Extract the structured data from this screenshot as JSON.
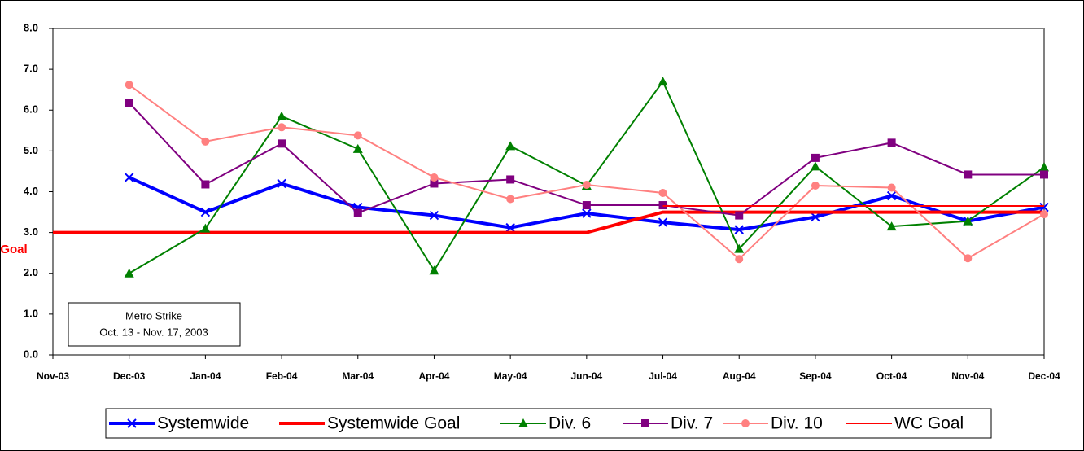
{
  "chart_data": {
    "type": "line",
    "categories": [
      "Nov-03",
      "Dec-03",
      "Jan-04",
      "Feb-04",
      "Mar-04",
      "Apr-04",
      "May-04",
      "Jun-04",
      "Jul-04",
      "Aug-04",
      "Sep-04",
      "Oct-04",
      "Nov-04",
      "Dec-04"
    ],
    "series": [
      {
        "name": "Systemwide",
        "color": "#0000ff",
        "marker": "x",
        "width": 4,
        "values": [
          null,
          4.35,
          3.5,
          4.2,
          3.62,
          3.42,
          3.12,
          3.47,
          3.25,
          3.07,
          3.38,
          3.9,
          3.28,
          3.62
        ]
      },
      {
        "name": "Systemwide Goal",
        "color": "#ff0000",
        "marker": null,
        "width": 4,
        "values": [
          3.0,
          3.0,
          3.0,
          3.0,
          3.0,
          3.0,
          3.0,
          3.0,
          3.5,
          3.5,
          3.5,
          3.5,
          3.5,
          3.5
        ]
      },
      {
        "name": "Div. 6",
        "color": "#008000",
        "marker": "triangle",
        "width": 2,
        "values": [
          null,
          2.0,
          3.1,
          5.85,
          5.05,
          2.07,
          5.12,
          4.15,
          6.7,
          2.6,
          4.62,
          3.15,
          3.28,
          4.6
        ]
      },
      {
        "name": "Div. 7",
        "color": "#800080",
        "marker": "square",
        "width": 2,
        "values": [
          null,
          6.18,
          4.18,
          5.18,
          3.48,
          4.2,
          4.3,
          3.67,
          3.67,
          3.42,
          4.83,
          5.2,
          4.42,
          4.42
        ]
      },
      {
        "name": "Div. 10",
        "color": "#ff8080",
        "marker": "circle",
        "width": 2,
        "values": [
          null,
          6.62,
          5.23,
          5.58,
          5.38,
          4.35,
          3.82,
          4.17,
          3.97,
          2.35,
          4.15,
          4.1,
          2.37,
          3.45
        ]
      },
      {
        "name": "WC Goal",
        "color": "#ff0000",
        "marker": null,
        "width": 2,
        "values": [
          null,
          null,
          null,
          null,
          null,
          null,
          null,
          null,
          3.65,
          3.65,
          3.65,
          3.65,
          3.65,
          3.65
        ]
      }
    ],
    "ylim": [
      0,
      8
    ],
    "yticks": [
      {
        "value": 0,
        "label": "0.0"
      },
      {
        "value": 1,
        "label": "1.0"
      },
      {
        "value": 2,
        "label": "2.0"
      },
      {
        "value": 3,
        "label": "3.0"
      },
      {
        "value": 4,
        "label": "4.0"
      },
      {
        "value": 5,
        "label": "5.0"
      },
      {
        "value": 6,
        "label": "6.0"
      },
      {
        "value": 7,
        "label": "7.0"
      },
      {
        "value": 8,
        "label": "8.0"
      }
    ],
    "goal_label": "Goal",
    "annotation": [
      "Metro Strike",
      "Oct. 13 - Nov. 17, 2003"
    ],
    "legend": "bottom"
  }
}
